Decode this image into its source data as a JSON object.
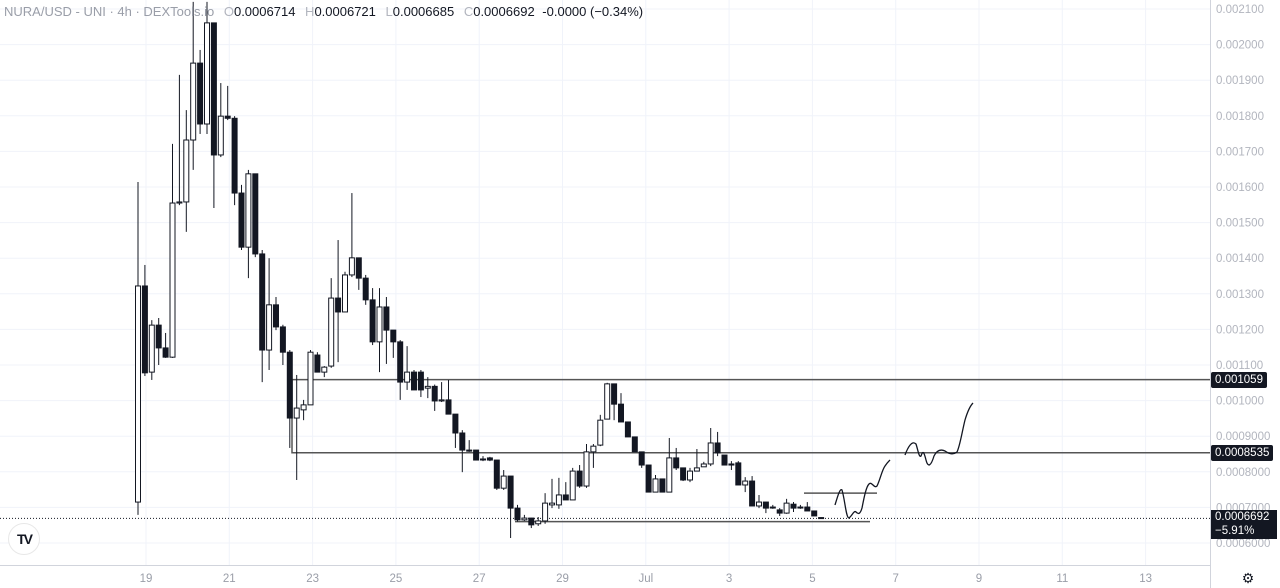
{
  "header": {
    "symbol": "NURA/USD - UNI · 4h · DEXTools.io",
    "open_label": "O",
    "open": "0.0006714",
    "high_label": "H",
    "high": "0.0006721",
    "low_label": "L",
    "low": "0.0006685",
    "close_label": "C",
    "close": "0.0006692",
    "change": "-0.0000 (−0.34%)"
  },
  "price_axis": {
    "ticks": [
      "0.002100",
      "0.002000",
      "0.001900",
      "0.001800",
      "0.001700",
      "0.001600",
      "0.001500",
      "0.001400",
      "0.001300",
      "0.001200",
      "0.001100",
      "0.001000",
      "0.0009000",
      "0.0008000",
      "0.0007000",
      "0.0006000"
    ],
    "levels": [
      {
        "label": "0.001059",
        "price": 0.001059
      },
      {
        "label": "0.0008535",
        "price": 0.0008535
      }
    ],
    "current": {
      "price": 0.0006692,
      "label": "0.0006692",
      "change": "−5.91%"
    }
  },
  "time_axis": {
    "ticks": [
      "19",
      "21",
      "23",
      "25",
      "27",
      "29",
      "Jul",
      "3",
      "5",
      "7",
      "9",
      "11",
      "13"
    ]
  },
  "chart_data": {
    "type": "candlestick",
    "interval": "4h",
    "ylim": [
      0.0006,
      0.0021
    ],
    "grid": true,
    "colors": {
      "up": "#ffffff",
      "down": "#131722",
      "wick": "#131722",
      "level": "#555555"
    },
    "support_levels": [
      0.00066,
      0.00074
    ],
    "candles_ohlc": [
      [
        0.000715,
        0.001614,
        0.000679,
        0.001322
      ],
      [
        0.001322,
        0.001381,
        0.001069,
        0.001078
      ],
      [
        0.00108,
        0.001226,
        0.001058,
        0.001212
      ],
      [
        0.001212,
        0.001232,
        0.0011,
        0.001148
      ],
      [
        0.001148,
        0.00119,
        0.00112,
        0.001122
      ],
      [
        0.001122,
        0.001721,
        0.00112,
        0.001555
      ],
      [
        0.001555,
        0.001915,
        0.001549,
        0.001558
      ],
      [
        0.001558,
        0.001816,
        0.001474,
        0.001732
      ],
      [
        0.001732,
        0.00212,
        0.001648,
        0.001948
      ],
      [
        0.001948,
        0.001985,
        0.001749,
        0.001777
      ],
      [
        0.001777,
        0.00212,
        0.001749,
        0.002061
      ],
      [
        0.002061,
        0.002061,
        0.001541,
        0.00169
      ],
      [
        0.00169,
        0.001892,
        0.001684,
        0.001799
      ],
      [
        0.001799,
        0.001884,
        0.001788,
        0.001793
      ],
      [
        0.001793,
        0.001799,
        0.001549,
        0.001583
      ],
      [
        0.001583,
        0.001606,
        0.001423,
        0.001431
      ],
      [
        0.001431,
        0.001648,
        0.001344,
        0.001637
      ],
      [
        0.001637,
        0.001637,
        0.001403,
        0.001412
      ],
      [
        0.001412,
        0.001423,
        0.001052,
        0.001142
      ],
      [
        0.001142,
        0.0014,
        0.001086,
        0.001269
      ],
      [
        0.001269,
        0.001291,
        0.001198,
        0.001207
      ],
      [
        0.001207,
        0.001213,
        0.0011,
        0.001136
      ],
      [
        0.001136,
        0.001142,
        0.000867,
        0.000951
      ],
      [
        0.000951,
        0.001072,
        0.000777,
        0.000979
      ],
      [
        0.000974,
        0.001002,
        0.000945,
        0.000988
      ],
      [
        0.000988,
        0.001142,
        0.000988,
        0.001136
      ],
      [
        0.001128,
        0.001136,
        0.00108,
        0.00108
      ],
      [
        0.00108,
        0.001097,
        0.001066,
        0.001094
      ],
      [
        0.001097,
        0.001344,
        0.001092,
        0.001288
      ],
      [
        0.001288,
        0.001451,
        0.001108,
        0.001249
      ],
      [
        0.001249,
        0.001362,
        0.001249,
        0.001353
      ],
      [
        0.001353,
        0.001583,
        0.001347,
        0.001401
      ],
      [
        0.001401,
        0.001401,
        0.001311,
        0.001344
      ],
      [
        0.001344,
        0.001353,
        0.001269,
        0.001283
      ],
      [
        0.001283,
        0.001316,
        0.001156,
        0.001165
      ],
      [
        0.001165,
        0.001316,
        0.00108,
        0.001263
      ],
      [
        0.001263,
        0.001291,
        0.001103,
        0.001198
      ],
      [
        0.001198,
        0.001198,
        0.00112,
        0.001165
      ],
      [
        0.001165,
        0.00117,
        0.001002,
        0.001052
      ],
      [
        0.001052,
        0.001153,
        0.00103,
        0.00108
      ],
      [
        0.00108,
        0.001086,
        0.00103,
        0.00103
      ],
      [
        0.00108,
        0.001086,
        0.00101,
        0.00103
      ],
      [
        0.001035,
        0.001066,
        0.001007,
        0.00104
      ],
      [
        0.00104,
        0.001045,
        0.000971,
        0.000999
      ],
      [
        0.000999,
        0.001052,
        0.000996,
        0.001002
      ],
      [
        0.001002,
        0.001058,
        0.000962,
        0.000962
      ],
      [
        0.000962,
        0.000962,
        0.000867,
        0.000909
      ],
      [
        0.000909,
        0.000917,
        0.000799,
        0.000861
      ],
      [
        0.000861,
        0.000889,
        0.000856,
        0.000858
      ],
      [
        0.000861,
        0.000861,
        0.000833,
        0.000833
      ],
      [
        0.000836,
        0.000844,
        0.00083,
        0.000836
      ],
      [
        0.000839,
        0.000842,
        0.00083,
        0.000833
      ],
      [
        0.000833,
        0.000833,
        0.000749,
        0.000754
      ],
      [
        0.000754,
        0.000805,
        0.000749,
        0.000788
      ],
      [
        0.000788,
        0.000788,
        0.000614,
        0.000698
      ],
      [
        0.000698,
        0.000707,
        0.00066,
        0.000665
      ],
      [
        0.000665,
        0.000679,
        0.000662,
        0.00067
      ],
      [
        0.00067,
        0.00067,
        0.000642,
        0.000651
      ],
      [
        0.000654,
        0.000673,
        0.000648,
        0.000662
      ],
      [
        0.000662,
        0.00074,
        0.000654,
        0.000712
      ],
      [
        0.000707,
        0.00078,
        0.000698,
        0.000712
      ],
      [
        0.000707,
        0.000783,
        0.000696,
        0.000735
      ],
      [
        0.000735,
        0.000771,
        0.000721,
        0.000721
      ],
      [
        0.000721,
        0.000811,
        0.000721,
        0.000802
      ],
      [
        0.000802,
        0.000819,
        0.000755,
        0.00076
      ],
      [
        0.00076,
        0.000878,
        0.000755,
        0.000856
      ],
      [
        0.000856,
        0.000878,
        0.000811,
        0.000872
      ],
      [
        0.000875,
        0.00096,
        0.000872,
        0.000945
      ],
      [
        0.000948,
        0.00105,
        0.000948,
        0.001047
      ],
      [
        0.001047,
        0.001047,
        0.000945,
        0.00099
      ],
      [
        0.00099,
        0.001021,
        0.00094,
        0.00094
      ],
      [
        0.00094,
        0.00094,
        0.000898,
        0.000898
      ],
      [
        0.000898,
        0.000898,
        0.000856,
        0.000856
      ],
      [
        0.000856,
        0.000856,
        0.000811,
        0.000819
      ],
      [
        0.000819,
        0.000819,
        0.000743,
        0.000743
      ],
      [
        0.000743,
        0.000791,
        0.000743,
        0.00078
      ],
      [
        0.00078,
        0.00078,
        0.000743,
        0.000743
      ],
      [
        0.000743,
        0.000895,
        0.000743,
        0.000839
      ],
      [
        0.000839,
        0.000867,
        0.000805,
        0.000811
      ],
      [
        0.000811,
        0.000811,
        0.000774,
        0.000777
      ],
      [
        0.000777,
        0.000811,
        0.000771,
        0.000802
      ],
      [
        0.000802,
        0.000864,
        0.000802,
        0.000811
      ],
      [
        0.000814,
        0.000828,
        0.000814,
        0.000822
      ],
      [
        0.000822,
        0.000923,
        0.000816,
        0.000881
      ],
      [
        0.000881,
        0.000912,
        0.000844,
        0.000853
      ],
      [
        0.000847,
        0.000847,
        0.000819,
        0.000819
      ],
      [
        0.000822,
        0.00083,
        0.000805,
        0.000819
      ],
      [
        0.000825,
        0.00083,
        0.000763,
        0.000763
      ],
      [
        0.000763,
        0.000785,
        0.000743,
        0.000774
      ],
      [
        0.000774,
        0.000788,
        0.000704,
        0.000704
      ],
      [
        0.000704,
        0.000735,
        0.000698,
        0.000715
      ],
      [
        0.000715,
        0.000715,
        0.000684,
        0.000698
      ],
      [
        0.000701,
        0.000707,
        0.000696,
        0.000701
      ],
      [
        0.000693,
        0.000698,
        0.000676,
        0.000684
      ],
      [
        0.000684,
        0.000724,
        0.000682,
        0.000712
      ],
      [
        0.000709,
        0.000715,
        0.000687,
        0.000698
      ],
      [
        0.000701,
        0.000707,
        0.000696,
        0.000701
      ],
      [
        0.000701,
        0.000715,
        0.00069,
        0.00069
      ],
      [
        0.00069,
        0.00069,
        0.000676,
        0.000676
      ],
      [
        0.0006714,
        0.0006721,
        0.0006685,
        0.0006692
      ]
    ]
  }
}
